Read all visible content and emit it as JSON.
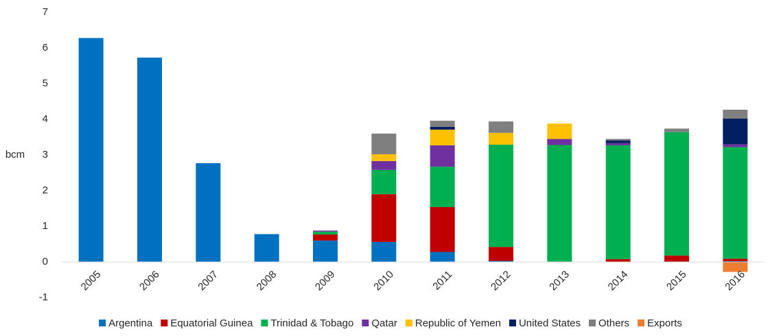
{
  "chart_data": {
    "type": "stacked_bar",
    "y_label": "bcm",
    "categories": [
      "2005",
      "2006",
      "2007",
      "2008",
      "2009",
      "2010",
      "2011",
      "2012",
      "2013",
      "2014",
      "2015",
      "2016"
    ],
    "series": [
      {
        "name": "Argentina",
        "color": "#0070c0",
        "values": [
          6.28,
          5.73,
          2.77,
          0.78,
          0.6,
          0.56,
          0.28,
          0.03,
          null,
          null,
          null,
          0.02
        ]
      },
      {
        "name": "Equatorial Guinea",
        "color": "#c00000",
        "values": [
          null,
          null,
          null,
          null,
          0.17,
          1.34,
          1.26,
          0.39,
          null,
          0.08,
          0.18,
          0.07
        ]
      },
      {
        "name": "Trinidad & Tobago",
        "color": "#00b050",
        "values": [
          null,
          null,
          null,
          null,
          0.08,
          0.68,
          1.13,
          2.87,
          3.28,
          3.19,
          3.46,
          3.13
        ]
      },
      {
        "name": "Qatar",
        "color": "#7030a0",
        "values": [
          null,
          null,
          null,
          null,
          0.03,
          0.25,
          0.6,
          null,
          0.17,
          0.06,
          null,
          0.08
        ]
      },
      {
        "name": "Republic of Yemen",
        "color": "#ffc000",
        "values": [
          null,
          null,
          null,
          null,
          null,
          0.19,
          0.44,
          0.33,
          0.43,
          null,
          null,
          null
        ]
      },
      {
        "name": "United States",
        "color": "#002060",
        "values": [
          null,
          null,
          null,
          null,
          null,
          null,
          0.08,
          null,
          null,
          0.08,
          null,
          0.72
        ]
      },
      {
        "name": "Others",
        "color": "#7f7f7f",
        "values": [
          null,
          null,
          null,
          null,
          null,
          0.58,
          0.17,
          0.32,
          null,
          0.04,
          0.1,
          0.25
        ]
      },
      {
        "name": "Exports",
        "color": "#ed7d31",
        "values": [
          null,
          null,
          null,
          null,
          null,
          null,
          null,
          null,
          null,
          null,
          null,
          -0.28
        ]
      }
    ],
    "ylim": [
      -1,
      7
    ],
    "yticks": [
      -1,
      0,
      1,
      2,
      3,
      4,
      5,
      6,
      7
    ]
  }
}
